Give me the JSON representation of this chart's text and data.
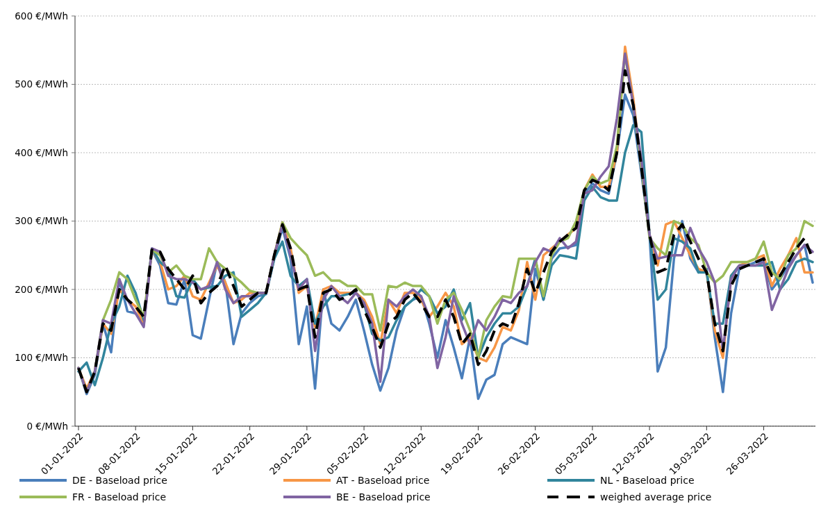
{
  "chart_data": {
    "type": "line",
    "grid": "y",
    "legend": "bottom",
    "ylim": [
      0,
      600
    ],
    "yticks": [
      {
        "value": 0,
        "label": "0 €/MWh"
      },
      {
        "value": 100,
        "label": "100 €/MWh"
      },
      {
        "value": 200,
        "label": "200 €/MWh"
      },
      {
        "value": 300,
        "label": "300 €/MWh"
      },
      {
        "value": 400,
        "label": "400 €/MWh"
      },
      {
        "value": 500,
        "label": "500 €/MWh"
      },
      {
        "value": 600,
        "label": "600 €/MWh"
      }
    ],
    "xlim": [
      "2022-01-01",
      "2022-04-01"
    ],
    "xticks": [
      {
        "value": "2022-01-01",
        "label": "01-01-2022"
      },
      {
        "value": "2022-01-08",
        "label": "08-01-2022"
      },
      {
        "value": "2022-01-15",
        "label": "15-01-2022"
      },
      {
        "value": "2022-01-22",
        "label": "22-01-2022"
      },
      {
        "value": "2022-01-29",
        "label": "29-01-2022"
      },
      {
        "value": "2022-02-05",
        "label": "05-02-2022"
      },
      {
        "value": "2022-02-12",
        "label": "12-02-2022"
      },
      {
        "value": "2022-02-19",
        "label": "19-02-2022"
      },
      {
        "value": "2022-02-26",
        "label": "26-02-2022"
      },
      {
        "value": "2022-03-05",
        "label": "05-03-2022"
      },
      {
        "value": "2022-03-12",
        "label": "12-03-2022"
      },
      {
        "value": "2022-03-19",
        "label": "19-03-2022"
      },
      {
        "value": "2022-03-26",
        "label": "26-03-2022"
      }
    ],
    "x": [
      "2022-01-01",
      "2022-01-02",
      "2022-01-03",
      "2022-01-04",
      "2022-01-05",
      "2022-01-06",
      "2022-01-07",
      "2022-01-08",
      "2022-01-09",
      "2022-01-10",
      "2022-01-11",
      "2022-01-12",
      "2022-01-13",
      "2022-01-14",
      "2022-01-15",
      "2022-01-16",
      "2022-01-17",
      "2022-01-18",
      "2022-01-19",
      "2022-01-20",
      "2022-01-21",
      "2022-01-22",
      "2022-01-23",
      "2022-01-24",
      "2022-01-25",
      "2022-01-26",
      "2022-01-27",
      "2022-01-28",
      "2022-01-29",
      "2022-01-30",
      "2022-01-31",
      "2022-02-01",
      "2022-02-02",
      "2022-02-03",
      "2022-02-04",
      "2022-02-05",
      "2022-02-06",
      "2022-02-07",
      "2022-02-08",
      "2022-02-09",
      "2022-02-10",
      "2022-02-11",
      "2022-02-12",
      "2022-02-13",
      "2022-02-14",
      "2022-02-15",
      "2022-02-16",
      "2022-02-17",
      "2022-02-18",
      "2022-02-19",
      "2022-02-20",
      "2022-02-21",
      "2022-02-22",
      "2022-02-23",
      "2022-02-24",
      "2022-02-25",
      "2022-02-26",
      "2022-02-27",
      "2022-02-28",
      "2022-03-01",
      "2022-03-02",
      "2022-03-03",
      "2022-03-04",
      "2022-03-05",
      "2022-03-06",
      "2022-03-07",
      "2022-03-08",
      "2022-03-09",
      "2022-03-10",
      "2022-03-11",
      "2022-03-12",
      "2022-03-13",
      "2022-03-14",
      "2022-03-15",
      "2022-03-16",
      "2022-03-17",
      "2022-03-18",
      "2022-03-19",
      "2022-03-20",
      "2022-03-21",
      "2022-03-22",
      "2022-03-23",
      "2022-03-24",
      "2022-03-25",
      "2022-03-26",
      "2022-03-27",
      "2022-03-28",
      "2022-03-29",
      "2022-03-30",
      "2022-03-31",
      "2022-04-01"
    ],
    "series": [
      {
        "name": "DE - Baseload price",
        "color": "#4a7ebb",
        "values": [
          85,
          47,
          75,
          150,
          108,
          215,
          168,
          165,
          148,
          258,
          235,
          180,
          178,
          215,
          133,
          128,
          185,
          240,
          210,
          120,
          165,
          180,
          190,
          193,
          245,
          290,
          245,
          120,
          175,
          55,
          200,
          150,
          140,
          160,
          185,
          140,
          90,
          52,
          85,
          140,
          175,
          185,
          190,
          150,
          100,
          155,
          115,
          70,
          130,
          40,
          68,
          75,
          120,
          130,
          125,
          120,
          230,
          185,
          245,
          260,
          262,
          265,
          340,
          355,
          345,
          340,
          400,
          485,
          455,
          370,
          280,
          80,
          115,
          245,
          300,
          245,
          225,
          230,
          130,
          50,
          165,
          230,
          235,
          240,
          240,
          200,
          215,
          235,
          250,
          265,
          210
        ]
      },
      {
        "name": "AT - Baseload price",
        "color": "#f79646",
        "values": [
          85,
          55,
          80,
          150,
          135,
          200,
          185,
          175,
          150,
          258,
          240,
          200,
          205,
          220,
          190,
          185,
          210,
          235,
          210,
          180,
          185,
          195,
          195,
          195,
          250,
          298,
          260,
          195,
          205,
          145,
          200,
          205,
          195,
          195,
          195,
          185,
          160,
          120,
          185,
          165,
          195,
          195,
          185,
          160,
          175,
          195,
          175,
          120,
          130,
          100,
          95,
          115,
          145,
          140,
          170,
          240,
          185,
          250,
          260,
          270,
          280,
          290,
          345,
          368,
          350,
          350,
          400,
          555,
          480,
          380,
          280,
          235,
          295,
          300,
          275,
          250,
          230,
          225,
          140,
          100,
          220,
          235,
          240,
          245,
          250,
          205,
          230,
          250,
          275,
          225,
          225
        ]
      },
      {
        "name": "NL - Baseload price",
        "color": "#31859c",
        "values": [
          80,
          93,
          60,
          100,
          150,
          175,
          220,
          195,
          155,
          260,
          240,
          230,
          190,
          188,
          215,
          200,
          203,
          205,
          220,
          225,
          160,
          170,
          180,
          195,
          245,
          270,
          220,
          205,
          215,
          150,
          175,
          190,
          190,
          193,
          195,
          180,
          135,
          125,
          130,
          155,
          175,
          185,
          200,
          190,
          165,
          175,
          200,
          155,
          180,
          100,
          130,
          150,
          165,
          165,
          175,
          205,
          245,
          185,
          235,
          250,
          248,
          245,
          330,
          350,
          335,
          330,
          330,
          400,
          440,
          430,
          280,
          185,
          200,
          275,
          270,
          260,
          225,
          225,
          150,
          150,
          220,
          235,
          235,
          235,
          235,
          240,
          200,
          215,
          240,
          245,
          240
        ]
      },
      {
        "name": "FR - Baseload price",
        "color": "#9bbb59",
        "values": [
          85,
          50,
          80,
          155,
          185,
          225,
          215,
          185,
          160,
          258,
          250,
          225,
          235,
          220,
          215,
          215,
          260,
          240,
          230,
          220,
          210,
          198,
          195,
          195,
          250,
          298,
          275,
          262,
          250,
          220,
          225,
          213,
          213,
          205,
          205,
          193,
          193,
          140,
          205,
          203,
          210,
          205,
          205,
          190,
          150,
          185,
          195,
          170,
          140,
          100,
          155,
          175,
          190,
          188,
          245,
          245,
          245,
          190,
          250,
          270,
          275,
          300,
          345,
          365,
          355,
          360,
          410,
          545,
          470,
          380,
          275,
          260,
          250,
          300,
          295,
          275,
          265,
          225,
          210,
          220,
          240,
          240,
          240,
          245,
          270,
          225,
          215,
          250,
          260,
          300,
          293
        ]
      },
      {
        "name": "BE - Baseload price",
        "color": "#8064a2",
        "values": [
          85,
          50,
          80,
          155,
          150,
          215,
          185,
          165,
          145,
          260,
          255,
          220,
          215,
          215,
          210,
          200,
          205,
          240,
          200,
          180,
          190,
          190,
          195,
          195,
          250,
          295,
          250,
          200,
          215,
          110,
          185,
          205,
          190,
          180,
          195,
          180,
          150,
          65,
          185,
          175,
          190,
          200,
          190,
          160,
          85,
          130,
          190,
          150,
          120,
          155,
          140,
          160,
          185,
          180,
          195,
          205,
          240,
          260,
          255,
          275,
          260,
          270,
          340,
          345,
          365,
          380,
          450,
          545,
          470,
          390,
          280,
          245,
          248,
          250,
          250,
          290,
          260,
          240,
          210,
          110,
          215,
          235,
          235,
          235,
          240,
          170,
          200,
          230,
          250,
          265,
          255
        ]
      },
      {
        "name": "weighed average price",
        "color": "#000000",
        "line_style": "dashed",
        "values": [
          85,
          50,
          80,
          150,
          140,
          200,
          185,
          175,
          160,
          258,
          255,
          230,
          215,
          200,
          220,
          180,
          195,
          205,
          235,
          205,
          175,
          185,
          195,
          195,
          250,
          295,
          260,
          200,
          205,
          130,
          195,
          200,
          185,
          190,
          200,
          170,
          145,
          115,
          150,
          160,
          185,
          195,
          180,
          160,
          160,
          185,
          160,
          120,
          135,
          90,
          110,
          140,
          150,
          145,
          180,
          230,
          195,
          225,
          255,
          270,
          280,
          290,
          345,
          360,
          355,
          345,
          400,
          520,
          470,
          380,
          280,
          225,
          230,
          280,
          295,
          270,
          245,
          225,
          150,
          110,
          205,
          230,
          235,
          240,
          245,
          220,
          220,
          240,
          260,
          275,
          245
        ]
      }
    ]
  }
}
